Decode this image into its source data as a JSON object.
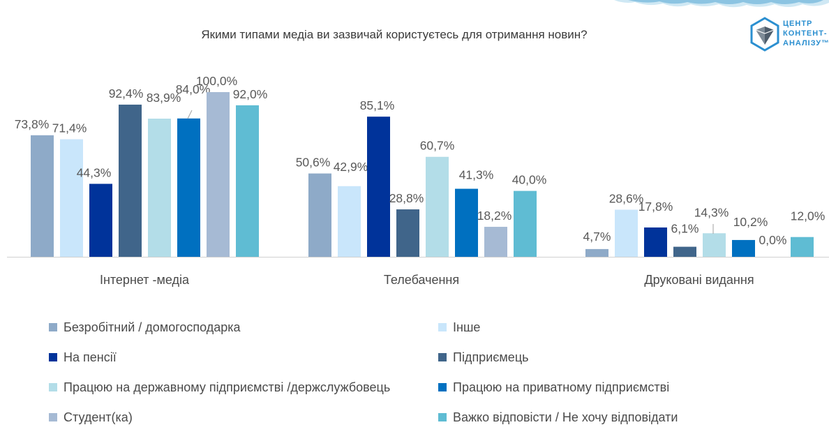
{
  "title": "Якими типами медіа ви зазвичай користуєтесь для отримання новин?",
  "logo": {
    "line1": "ЦЕНТР",
    "line2": "КОНТЕНТ-",
    "line3": "АНАЛІЗУ™"
  },
  "colors": {
    "Безробітний / домогосподарка": "#8eaac8",
    "Інше": "#c9e6fb",
    "На пенсії": "#00339a",
    "Підприємець": "#40658a",
    "Працюю на державному підприємстві /держслужбовець": "#b3dde8",
    "Працюю на приватному підприємстві": "#0070c0",
    "Студент(ка)": "#a6bad4",
    "Важко відповісти / Не хочу відповідати": "#5fbcd3",
    "axis": "#d0d0d0",
    "logo_blue": "#2b8fd0"
  },
  "chart_data": {
    "type": "bar",
    "title": "Якими типами медіа ви зазвичай користуєтесь для отримання новин?",
    "categories": [
      "Інтернет -медіа",
      "Телебачення",
      "Друковані видання"
    ],
    "ylim": [
      0,
      100
    ],
    "grid": false,
    "legend_position": "bottom",
    "series": [
      {
        "name": "Безробітний / домогосподарка",
        "values": [
          73.8,
          50.6,
          4.7
        ],
        "labels": [
          "73,8%",
          "50,6%",
          "4,7%"
        ]
      },
      {
        "name": "Інше",
        "values": [
          71.4,
          42.9,
          28.6
        ],
        "labels": [
          "71,4%",
          "42,9%",
          "28,6%"
        ]
      },
      {
        "name": "На пенсії",
        "values": [
          44.3,
          85.1,
          17.8
        ],
        "labels": [
          "44,3%",
          "85,1%",
          "17,8%"
        ]
      },
      {
        "name": "Підприємець",
        "values": [
          92.4,
          28.8,
          6.1
        ],
        "labels": [
          "92,4%",
          "28,8%",
          "6,1%"
        ]
      },
      {
        "name": "Працюю на державному підприємстві /держслужбовець",
        "values": [
          83.9,
          60.7,
          14.3
        ],
        "labels": [
          "83,9%",
          "60,7%",
          "14,3%"
        ]
      },
      {
        "name": "Працюю на приватному підприємстві",
        "values": [
          84.0,
          41.3,
          10.2
        ],
        "labels": [
          "84,0%",
          "41,3%",
          "10,2%"
        ]
      },
      {
        "name": "Студент(ка)",
        "values": [
          100.0,
          18.2,
          0.0
        ],
        "labels": [
          "100,0%",
          "18,2%",
          "0,0%"
        ]
      },
      {
        "name": "Важко відповісти / Не хочу відповідати",
        "values": [
          92.0,
          40.0,
          12.0
        ],
        "labels": [
          "92,0%",
          "40,0%",
          "12,0%"
        ]
      }
    ]
  }
}
